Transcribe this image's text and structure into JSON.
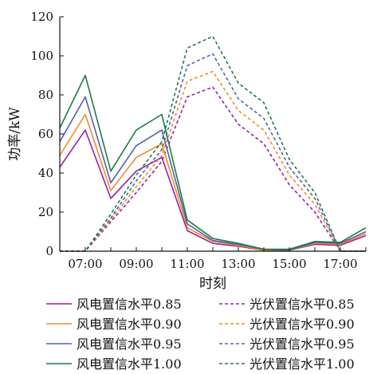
{
  "chart_data": {
    "type": "line",
    "xlabel": "时刻",
    "ylabel": "功率/kW",
    "ylim": [
      0,
      120
    ],
    "y_ticks": [
      0,
      20,
      40,
      60,
      80,
      100,
      120
    ],
    "x_tick_labels": [
      "07:00",
      "09:00",
      "11:00",
      "13:00",
      "15:00",
      "17:00"
    ],
    "x": [
      "06:00",
      "07:00",
      "08:00",
      "09:00",
      "10:00",
      "11:00",
      "12:00",
      "13:00",
      "14:00",
      "15:00",
      "16:00",
      "17:00",
      "18:00"
    ],
    "xlim": [
      "06:00",
      "18:00"
    ],
    "grid": false,
    "legend_position": "bottom",
    "series": [
      {
        "name": "风电置信水平0.85",
        "color": "#9b1f9a",
        "dash": false,
        "values": [
          43,
          62,
          27,
          41,
          48,
          10.5,
          4,
          2.5,
          0.5,
          0.5,
          3.5,
          3,
          8
        ]
      },
      {
        "name": "光伏置信水平0.85",
        "color": "#9b1f9a",
        "dash": true,
        "values": [
          0,
          0,
          15,
          30,
          46,
          79,
          84,
          65,
          55,
          34,
          20,
          0,
          0
        ]
      },
      {
        "name": "风电置信水平0.90",
        "color": "#f28c28",
        "dash": false,
        "values": [
          49,
          70,
          31,
          48,
          55,
          12,
          5,
          3,
          0.5,
          0.5,
          4,
          3.5,
          9
        ]
      },
      {
        "name": "光伏置信水平0.90",
        "color": "#f28c28",
        "dash": true,
        "values": [
          0,
          0,
          16,
          33,
          49,
          87,
          92,
          72,
          62,
          39,
          24,
          0,
          0
        ]
      },
      {
        "name": "风电置信水平0.95",
        "color": "#4f63a8",
        "dash": false,
        "values": [
          56,
          79,
          35,
          54,
          62,
          14,
          5.5,
          3.5,
          1,
          0.5,
          4.5,
          4,
          10
        ]
      },
      {
        "name": "光伏置信水平0.95",
        "color": "#4f63a8",
        "dash": true,
        "values": [
          0,
          0,
          17,
          36,
          52,
          95,
          101,
          78,
          68,
          43,
          27,
          0,
          0
        ]
      },
      {
        "name": "风电置信水平1.00",
        "color": "#1e7a4a",
        "dash": false,
        "values": [
          63,
          90,
          41,
          62,
          70,
          16,
          6.5,
          4,
          1,
          1,
          5,
          4.5,
          12
        ]
      },
      {
        "name": "光伏置信水平1.00",
        "color": "#1e7a4a",
        "dash": true,
        "values": [
          0,
          0,
          19,
          39,
          56,
          104,
          110,
          86,
          76,
          47,
          30,
          0,
          0
        ]
      }
    ]
  }
}
